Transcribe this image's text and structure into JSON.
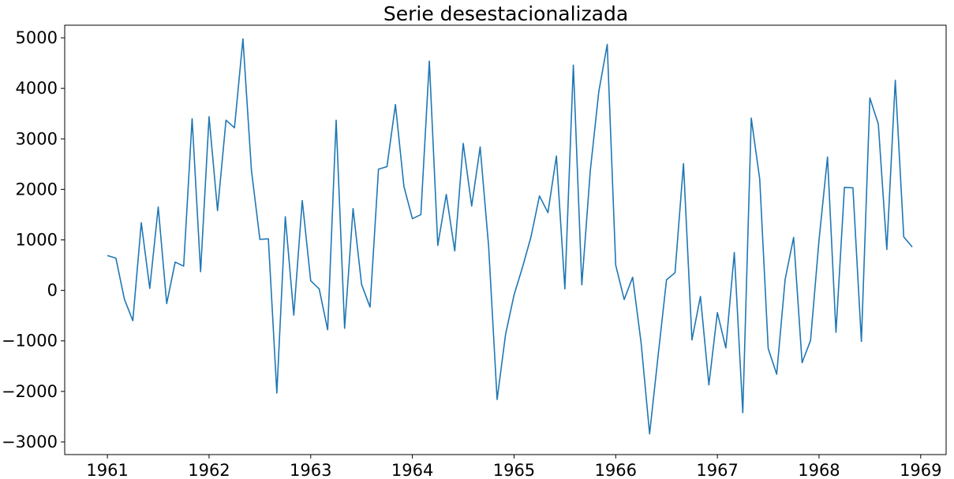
{
  "chart_data": {
    "type": "line",
    "title": "Serie desestacionalizada",
    "xlabel": "",
    "ylabel": "",
    "x_start": "1961-01",
    "frequency": "monthly",
    "xlim": [
      1960.58,
      1969.25
    ],
    "ylim": [
      -3250,
      5250
    ],
    "xticks": [
      1961,
      1962,
      1963,
      1964,
      1965,
      1966,
      1967,
      1968,
      1969
    ],
    "xtick_labels": [
      "1961",
      "1962",
      "1963",
      "1964",
      "1965",
      "1966",
      "1967",
      "1968",
      "1969"
    ],
    "yticks": [
      -3000,
      -2000,
      -1000,
      0,
      1000,
      2000,
      3000,
      4000,
      5000
    ],
    "ytick_labels": [
      "−3000",
      "−2000",
      "−1000",
      "0",
      "1000",
      "2000",
      "3000",
      "4000",
      "5000"
    ],
    "grid": false,
    "legend": false,
    "series": [
      {
        "color": "#1f77b4",
        "values": [
          690,
          640,
          -170,
          -600,
          1340,
          40,
          1650,
          -260,
          560,
          480,
          3400,
          370,
          3440,
          1580,
          3370,
          3220,
          4980,
          2380,
          1010,
          1020,
          -2030,
          1460,
          -490,
          1780,
          190,
          30,
          -780,
          3370,
          -750,
          1620,
          120,
          -330,
          2400,
          2450,
          3680,
          2060,
          1420,
          1500,
          4540,
          890,
          1900,
          780,
          2910,
          1670,
          2840,
          870,
          -2160,
          -870,
          -90,
          460,
          1060,
          1870,
          1540,
          2660,
          30,
          4460,
          110,
          2370,
          3930,
          4870,
          500,
          -180,
          260,
          -1040,
          -2840,
          -1300,
          210,
          350,
          2510,
          -980,
          -120,
          -1870,
          -440,
          -1140,
          750,
          -2420,
          3410,
          2200,
          -1150,
          -1660,
          220,
          1050,
          -1430,
          -990,
          1000,
          2640,
          -830,
          2040,
          2030,
          -1010,
          3810,
          3290,
          810,
          4160,
          1060,
          860
        ]
      }
    ]
  }
}
